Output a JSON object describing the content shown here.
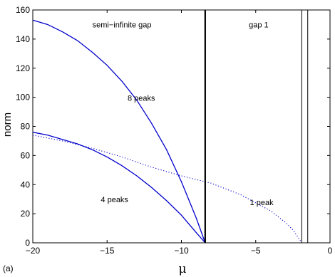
{
  "panel_label": "(a)",
  "chart_data": {
    "type": "line",
    "xlabel": "μ",
    "ylabel": "norm",
    "xlim": [
      -20,
      0
    ],
    "ylim": [
      0,
      160
    ],
    "xticks": [
      -20,
      -15,
      -10,
      -5,
      0
    ],
    "yticks": [
      0,
      20,
      40,
      60,
      80,
      100,
      120,
      140,
      160
    ],
    "grid": false,
    "series": [
      {
        "label_text": "8 peaks",
        "style": "solid",
        "color": "#0000cc",
        "x": [
          -20,
          -19,
          -18,
          -17,
          -16,
          -15,
          -14,
          -13,
          -12,
          -11,
          -10,
          -9,
          -8.4
        ],
        "y": [
          153,
          150,
          145,
          139,
          131,
          122,
          111,
          98,
          82,
          64,
          42,
          17,
          0
        ]
      },
      {
        "label_text": "4 peaks",
        "style": "solid",
        "color": "#0000cc",
        "x": [
          -20,
          -19,
          -18,
          -17,
          -16,
          -15,
          -14,
          -13,
          -12,
          -11,
          -10,
          -9,
          -8.4
        ],
        "y": [
          76,
          74,
          71,
          68,
          64,
          59,
          53,
          46,
          38,
          29,
          19,
          7,
          0
        ]
      },
      {
        "label_text": "1 peak",
        "style": "dotted",
        "color": "#0000cc",
        "x": [
          -20,
          -18,
          -16,
          -14,
          -12,
          -10,
          -8,
          -6,
          -4,
          -3,
          -2.5,
          -2.1,
          -1.9
        ],
        "y": [
          74,
          70,
          65,
          59,
          52,
          46,
          41,
          33,
          22,
          14,
          9,
          3,
          0
        ]
      }
    ],
    "band_edge": {
      "x": -8.4,
      "y0": 0,
      "y1": 160
    },
    "gap_box": {
      "x0": -1.9,
      "x1": -1.5,
      "y0": 0,
      "y1": 160
    },
    "region_labels": [
      "semi−infinite gap",
      "gap 1"
    ],
    "annotations": [
      "8 peaks",
      "4 peaks",
      "1 peak"
    ]
  }
}
